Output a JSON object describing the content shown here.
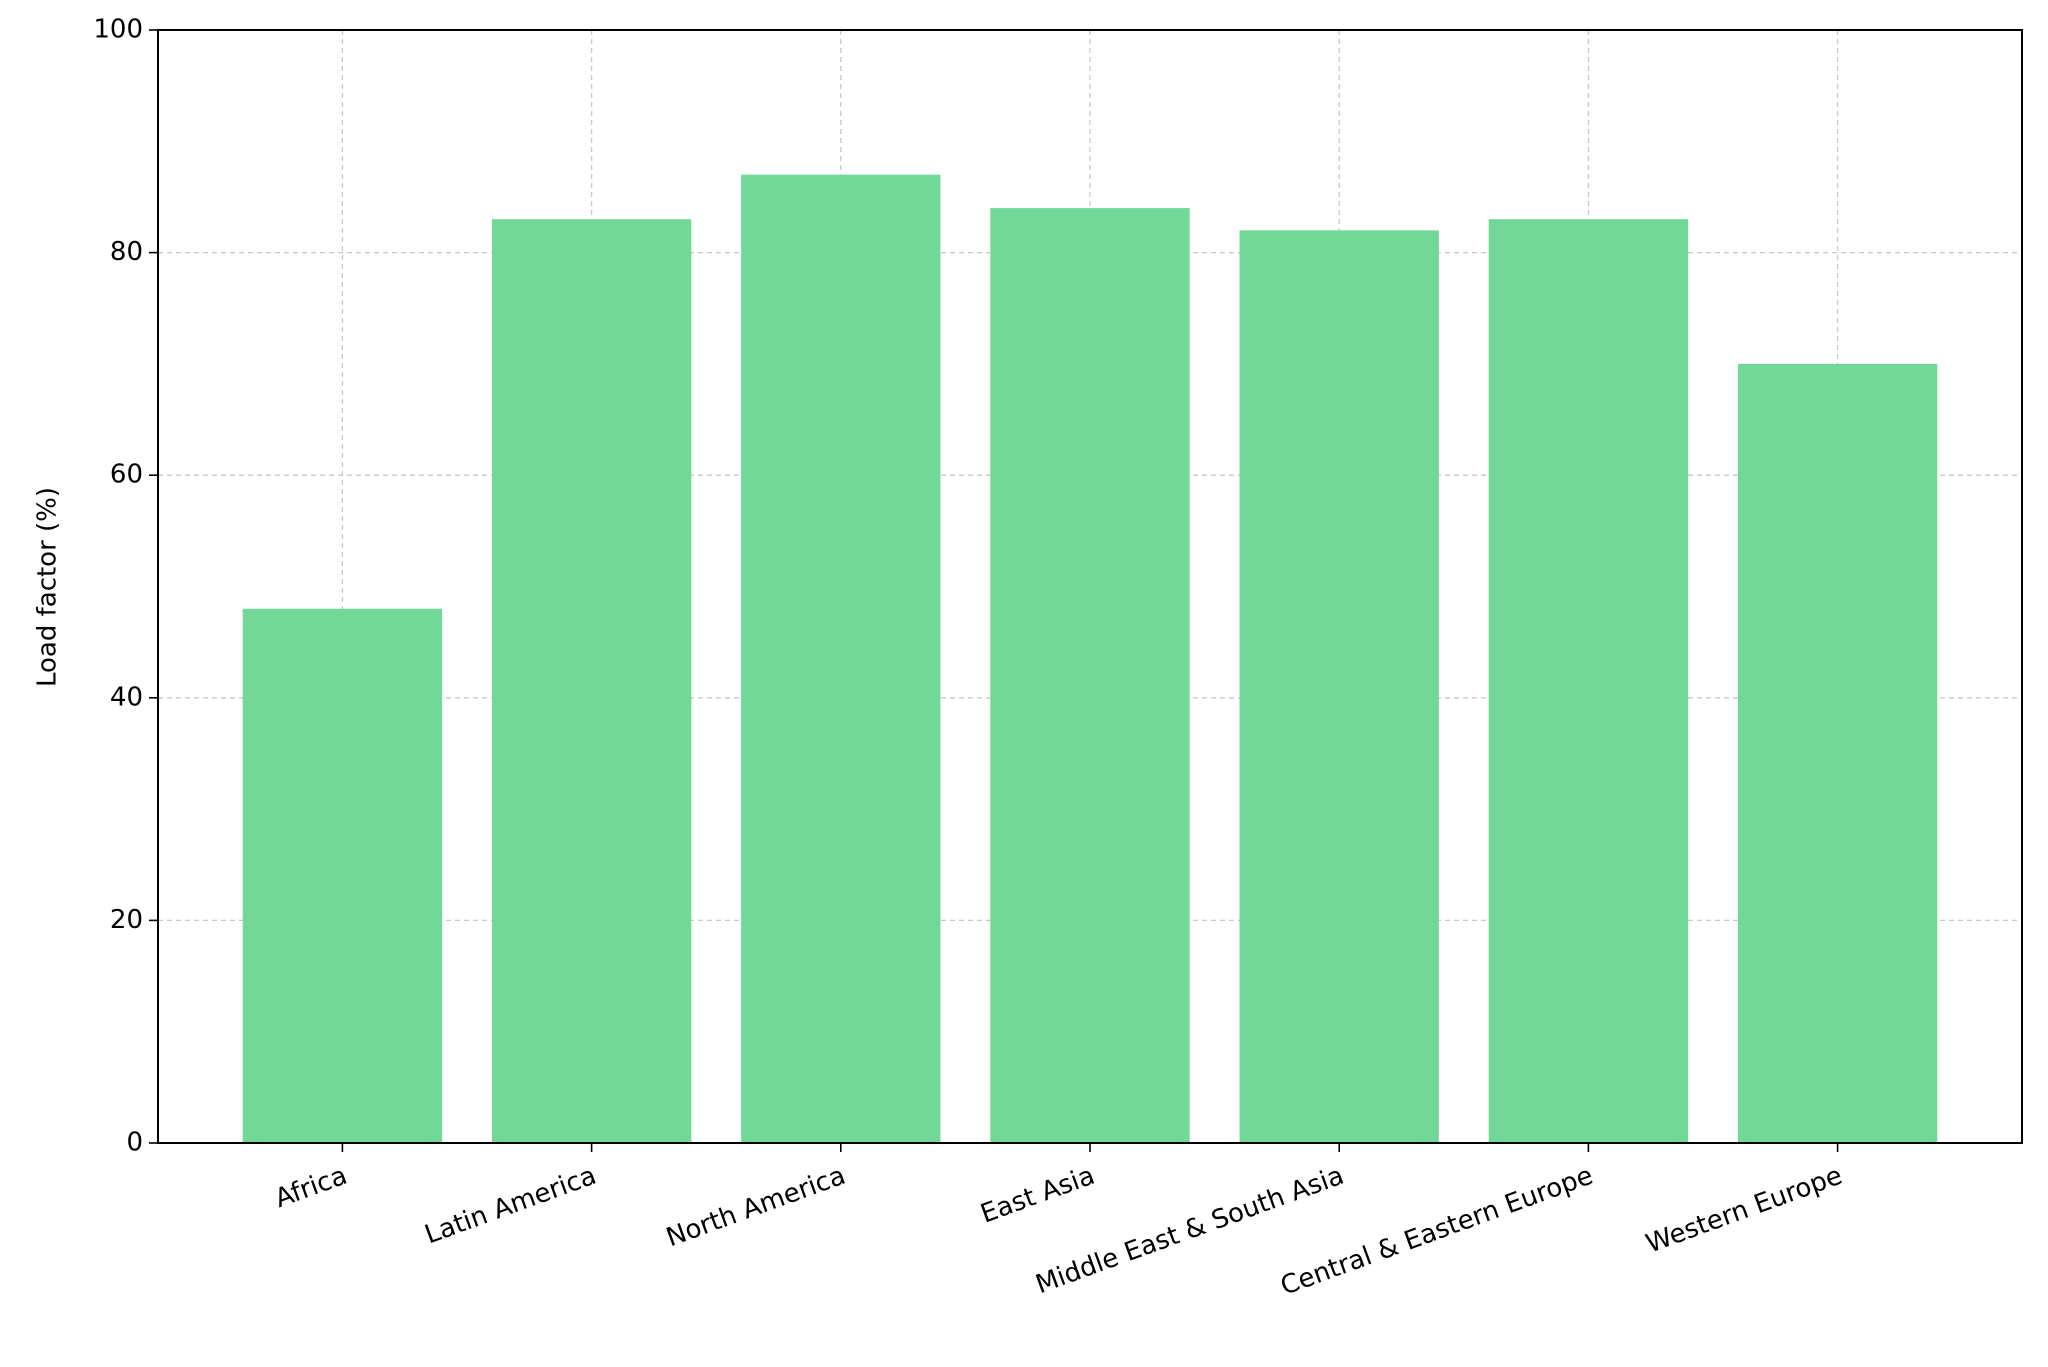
{
  "chart_data": {
    "type": "bar",
    "ylabel": "Load factor (%)",
    "categories": [
      "Africa",
      "Latin America",
      "North America",
      "East Asia",
      "Middle East & South Asia",
      "Central & Eastern Europe",
      "Western Europe"
    ],
    "values": [
      48,
      83,
      87,
      84,
      82,
      83,
      70
    ],
    "color": "#72d898",
    "ylim": [
      0,
      100
    ],
    "yticks": [
      0,
      20,
      40,
      60,
      80,
      100
    ],
    "grid": true
  }
}
